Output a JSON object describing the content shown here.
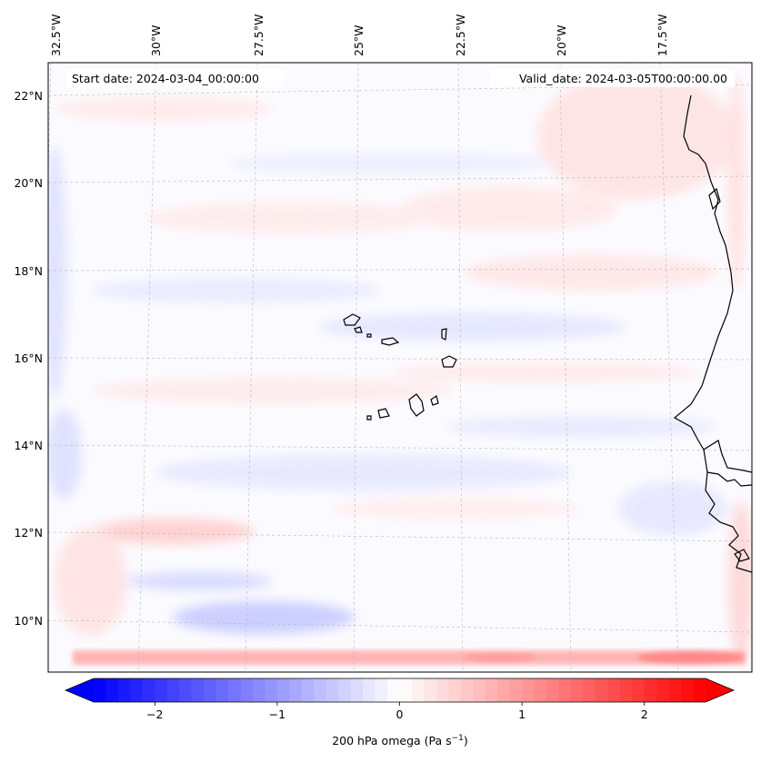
{
  "map": {
    "start_date": "Start date: 2024-03-04_00:00:00",
    "valid_date": "Valid_date: 2024-03-05T00:00:00.00",
    "lon_labels": [
      "32.5°W",
      "30°W",
      "27.5°W",
      "25°W",
      "22.5°W",
      "20°W",
      "17.5°W"
    ],
    "lat_labels": [
      "22°N",
      "20°N",
      "18°N",
      "16°N",
      "14°N",
      "12°N",
      "10°N"
    ],
    "colors": {
      "negative": "#0000ff",
      "zero": "#ffffff",
      "positive": "#ff0000",
      "coast": "#000000",
      "grid": "#b0b0b0"
    }
  },
  "colorbar": {
    "label": "200 hPa omega (Pa s",
    "label_sup": "−1",
    "label_close": ")",
    "ticks": [
      "−2",
      "−1",
      "0",
      "1",
      "2"
    ],
    "tick_values": [
      -2,
      -1,
      0,
      1,
      2
    ],
    "range": [
      -2.5,
      2.5
    ],
    "extend": "both",
    "cmap": "bwr"
  }
}
